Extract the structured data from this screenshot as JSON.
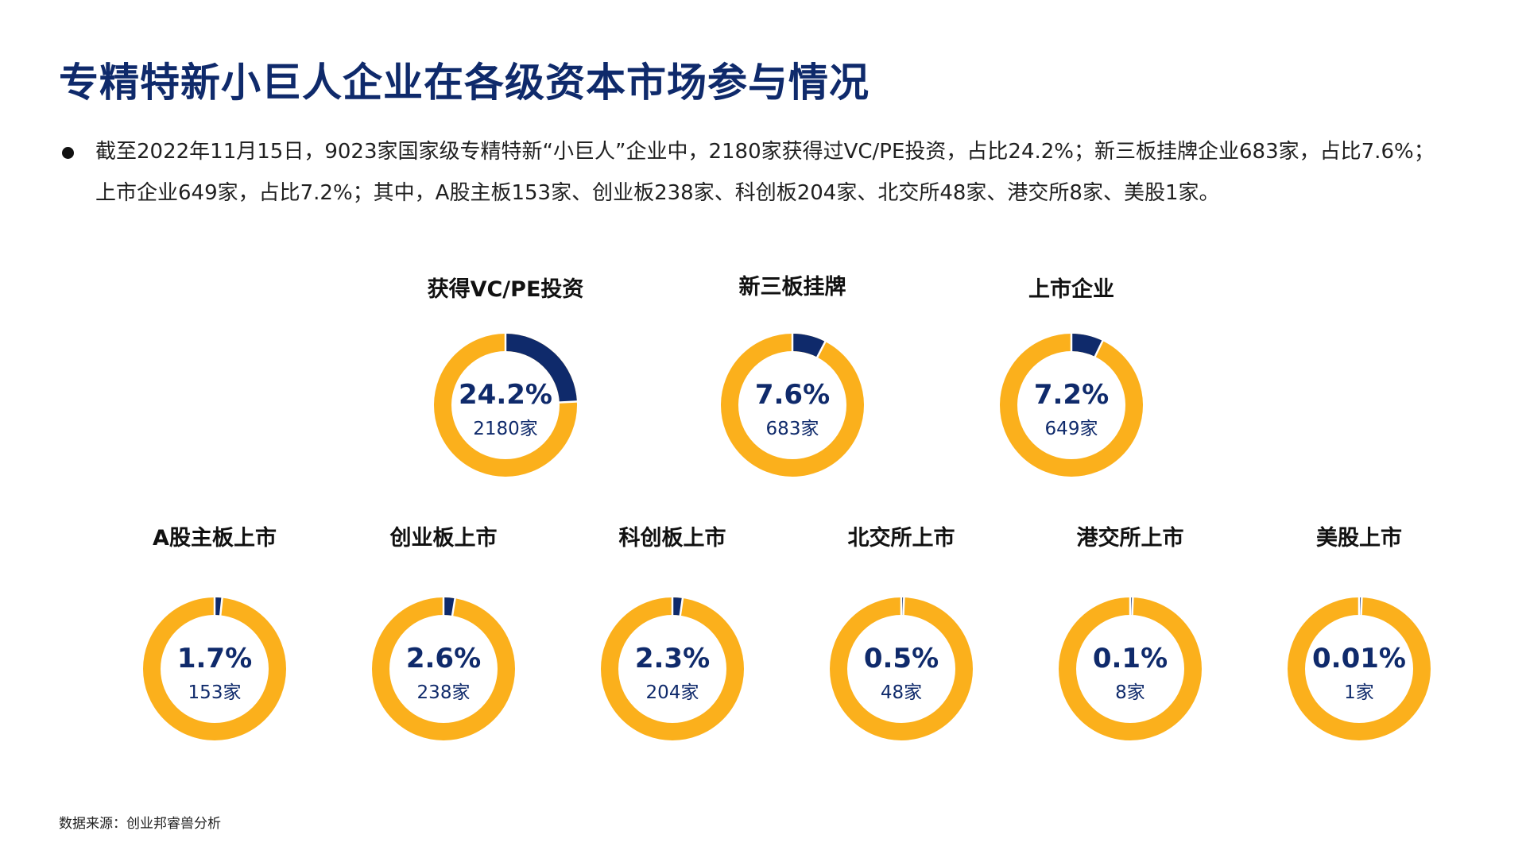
{
  "title": "专精特新小巨人企业在各级资本市场参与情况",
  "summary": {
    "line1": "截至2022年11月15日，9023家国家级专精特新“小巨人”企业中，2180家获得过VC/PE投资，占比24.2%；新三板挂牌企业683家，占比7.6%；",
    "line2": "上市企业649家，占比7.2%；其中，A股主板153家、创业板238家、科创板204家、北交所48家、港交所8家、美股1家。"
  },
  "source": "数据来源：创业邦睿兽分析",
  "colors": {
    "title": "#0f2a6b",
    "highlight": "#0f2a6b",
    "base": "#fbb01c"
  },
  "chart_data": [
    {
      "type": "pie",
      "title": "获得VC/PE投资",
      "percent_label": "24.2%",
      "count_label": "2180家",
      "value": 24.2
    },
    {
      "type": "pie",
      "title": "新三板挂牌",
      "percent_label": "7.6%",
      "count_label": "683家",
      "value": 7.6
    },
    {
      "type": "pie",
      "title": "上市企业",
      "percent_label": "7.2%",
      "count_label": "649家",
      "value": 7.2
    },
    {
      "type": "pie",
      "title": "A股主板上市",
      "percent_label": "1.7%",
      "count_label": "153家",
      "value": 1.7
    },
    {
      "type": "pie",
      "title": "创业板上市",
      "percent_label": "2.6%",
      "count_label": "238家",
      "value": 2.6
    },
    {
      "type": "pie",
      "title": "科创板上市",
      "percent_label": "2.3%",
      "count_label": "204家",
      "value": 2.3
    },
    {
      "type": "pie",
      "title": "北交所上市",
      "percent_label": "0.5%",
      "count_label": "48家",
      "value": 0.5
    },
    {
      "type": "pie",
      "title": "港交所上市",
      "percent_label": "0.1%",
      "count_label": "8家",
      "value": 0.1
    },
    {
      "type": "pie",
      "title": "美股上市",
      "percent_label": "0.01%",
      "count_label": "1家",
      "value": 0.01
    }
  ]
}
